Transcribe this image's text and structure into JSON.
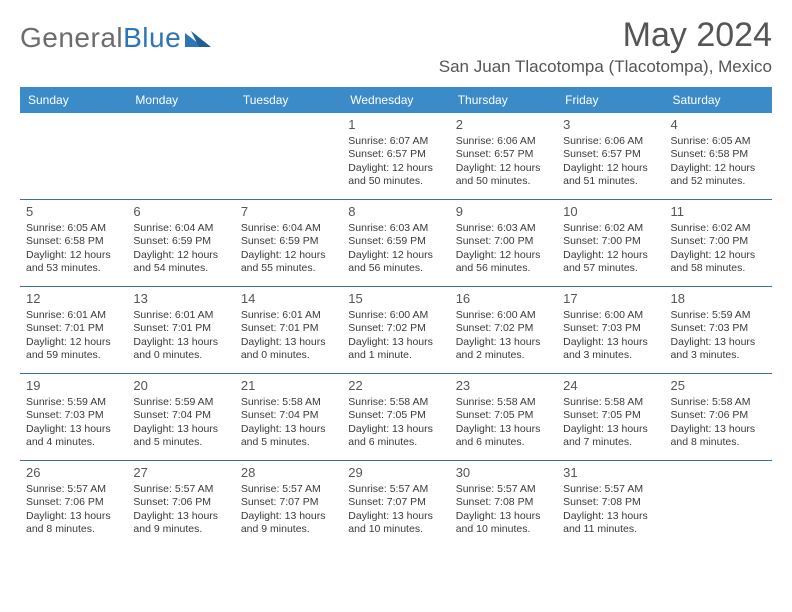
{
  "brand": {
    "part1": "General",
    "part2": "Blue"
  },
  "title": "May 2024",
  "location": "San Juan Tlacotompa (Tlacotompa), Mexico",
  "style": {
    "header_bg": "#3b8bc9",
    "header_text": "#ffffff",
    "week_border": "#3b6e9e",
    "body_text": "#3a3a3a",
    "daynum_color": "#555555",
    "title_color": "#555555",
    "brand_gray": "#6c6c6c",
    "brand_blue": "#2c76b8",
    "title_fontsize": 34,
    "location_fontsize": 17,
    "weekday_fontsize": 12,
    "cell_fontsize": 10.5,
    "daynum_fontsize": 13
  },
  "weekdays": [
    "Sunday",
    "Monday",
    "Tuesday",
    "Wednesday",
    "Thursday",
    "Friday",
    "Saturday"
  ],
  "weeks": [
    [
      null,
      null,
      null,
      {
        "n": "1",
        "sr": "6:07 AM",
        "ss": "6:57 PM",
        "dl": "12 hours and 50 minutes."
      },
      {
        "n": "2",
        "sr": "6:06 AM",
        "ss": "6:57 PM",
        "dl": "12 hours and 50 minutes."
      },
      {
        "n": "3",
        "sr": "6:06 AM",
        "ss": "6:57 PM",
        "dl": "12 hours and 51 minutes."
      },
      {
        "n": "4",
        "sr": "6:05 AM",
        "ss": "6:58 PM",
        "dl": "12 hours and 52 minutes."
      }
    ],
    [
      {
        "n": "5",
        "sr": "6:05 AM",
        "ss": "6:58 PM",
        "dl": "12 hours and 53 minutes."
      },
      {
        "n": "6",
        "sr": "6:04 AM",
        "ss": "6:59 PM",
        "dl": "12 hours and 54 minutes."
      },
      {
        "n": "7",
        "sr": "6:04 AM",
        "ss": "6:59 PM",
        "dl": "12 hours and 55 minutes."
      },
      {
        "n": "8",
        "sr": "6:03 AM",
        "ss": "6:59 PM",
        "dl": "12 hours and 56 minutes."
      },
      {
        "n": "9",
        "sr": "6:03 AM",
        "ss": "7:00 PM",
        "dl": "12 hours and 56 minutes."
      },
      {
        "n": "10",
        "sr": "6:02 AM",
        "ss": "7:00 PM",
        "dl": "12 hours and 57 minutes."
      },
      {
        "n": "11",
        "sr": "6:02 AM",
        "ss": "7:00 PM",
        "dl": "12 hours and 58 minutes."
      }
    ],
    [
      {
        "n": "12",
        "sr": "6:01 AM",
        "ss": "7:01 PM",
        "dl": "12 hours and 59 minutes."
      },
      {
        "n": "13",
        "sr": "6:01 AM",
        "ss": "7:01 PM",
        "dl": "13 hours and 0 minutes."
      },
      {
        "n": "14",
        "sr": "6:01 AM",
        "ss": "7:01 PM",
        "dl": "13 hours and 0 minutes."
      },
      {
        "n": "15",
        "sr": "6:00 AM",
        "ss": "7:02 PM",
        "dl": "13 hours and 1 minute."
      },
      {
        "n": "16",
        "sr": "6:00 AM",
        "ss": "7:02 PM",
        "dl": "13 hours and 2 minutes."
      },
      {
        "n": "17",
        "sr": "6:00 AM",
        "ss": "7:03 PM",
        "dl": "13 hours and 3 minutes."
      },
      {
        "n": "18",
        "sr": "5:59 AM",
        "ss": "7:03 PM",
        "dl": "13 hours and 3 minutes."
      }
    ],
    [
      {
        "n": "19",
        "sr": "5:59 AM",
        "ss": "7:03 PM",
        "dl": "13 hours and 4 minutes."
      },
      {
        "n": "20",
        "sr": "5:59 AM",
        "ss": "7:04 PM",
        "dl": "13 hours and 5 minutes."
      },
      {
        "n": "21",
        "sr": "5:58 AM",
        "ss": "7:04 PM",
        "dl": "13 hours and 5 minutes."
      },
      {
        "n": "22",
        "sr": "5:58 AM",
        "ss": "7:05 PM",
        "dl": "13 hours and 6 minutes."
      },
      {
        "n": "23",
        "sr": "5:58 AM",
        "ss": "7:05 PM",
        "dl": "13 hours and 6 minutes."
      },
      {
        "n": "24",
        "sr": "5:58 AM",
        "ss": "7:05 PM",
        "dl": "13 hours and 7 minutes."
      },
      {
        "n": "25",
        "sr": "5:58 AM",
        "ss": "7:06 PM",
        "dl": "13 hours and 8 minutes."
      }
    ],
    [
      {
        "n": "26",
        "sr": "5:57 AM",
        "ss": "7:06 PM",
        "dl": "13 hours and 8 minutes."
      },
      {
        "n": "27",
        "sr": "5:57 AM",
        "ss": "7:06 PM",
        "dl": "13 hours and 9 minutes."
      },
      {
        "n": "28",
        "sr": "5:57 AM",
        "ss": "7:07 PM",
        "dl": "13 hours and 9 minutes."
      },
      {
        "n": "29",
        "sr": "5:57 AM",
        "ss": "7:07 PM",
        "dl": "13 hours and 10 minutes."
      },
      {
        "n": "30",
        "sr": "5:57 AM",
        "ss": "7:08 PM",
        "dl": "13 hours and 10 minutes."
      },
      {
        "n": "31",
        "sr": "5:57 AM",
        "ss": "7:08 PM",
        "dl": "13 hours and 11 minutes."
      },
      null
    ]
  ],
  "labels": {
    "sunrise": "Sunrise:",
    "sunset": "Sunset:",
    "daylight": "Daylight:"
  }
}
